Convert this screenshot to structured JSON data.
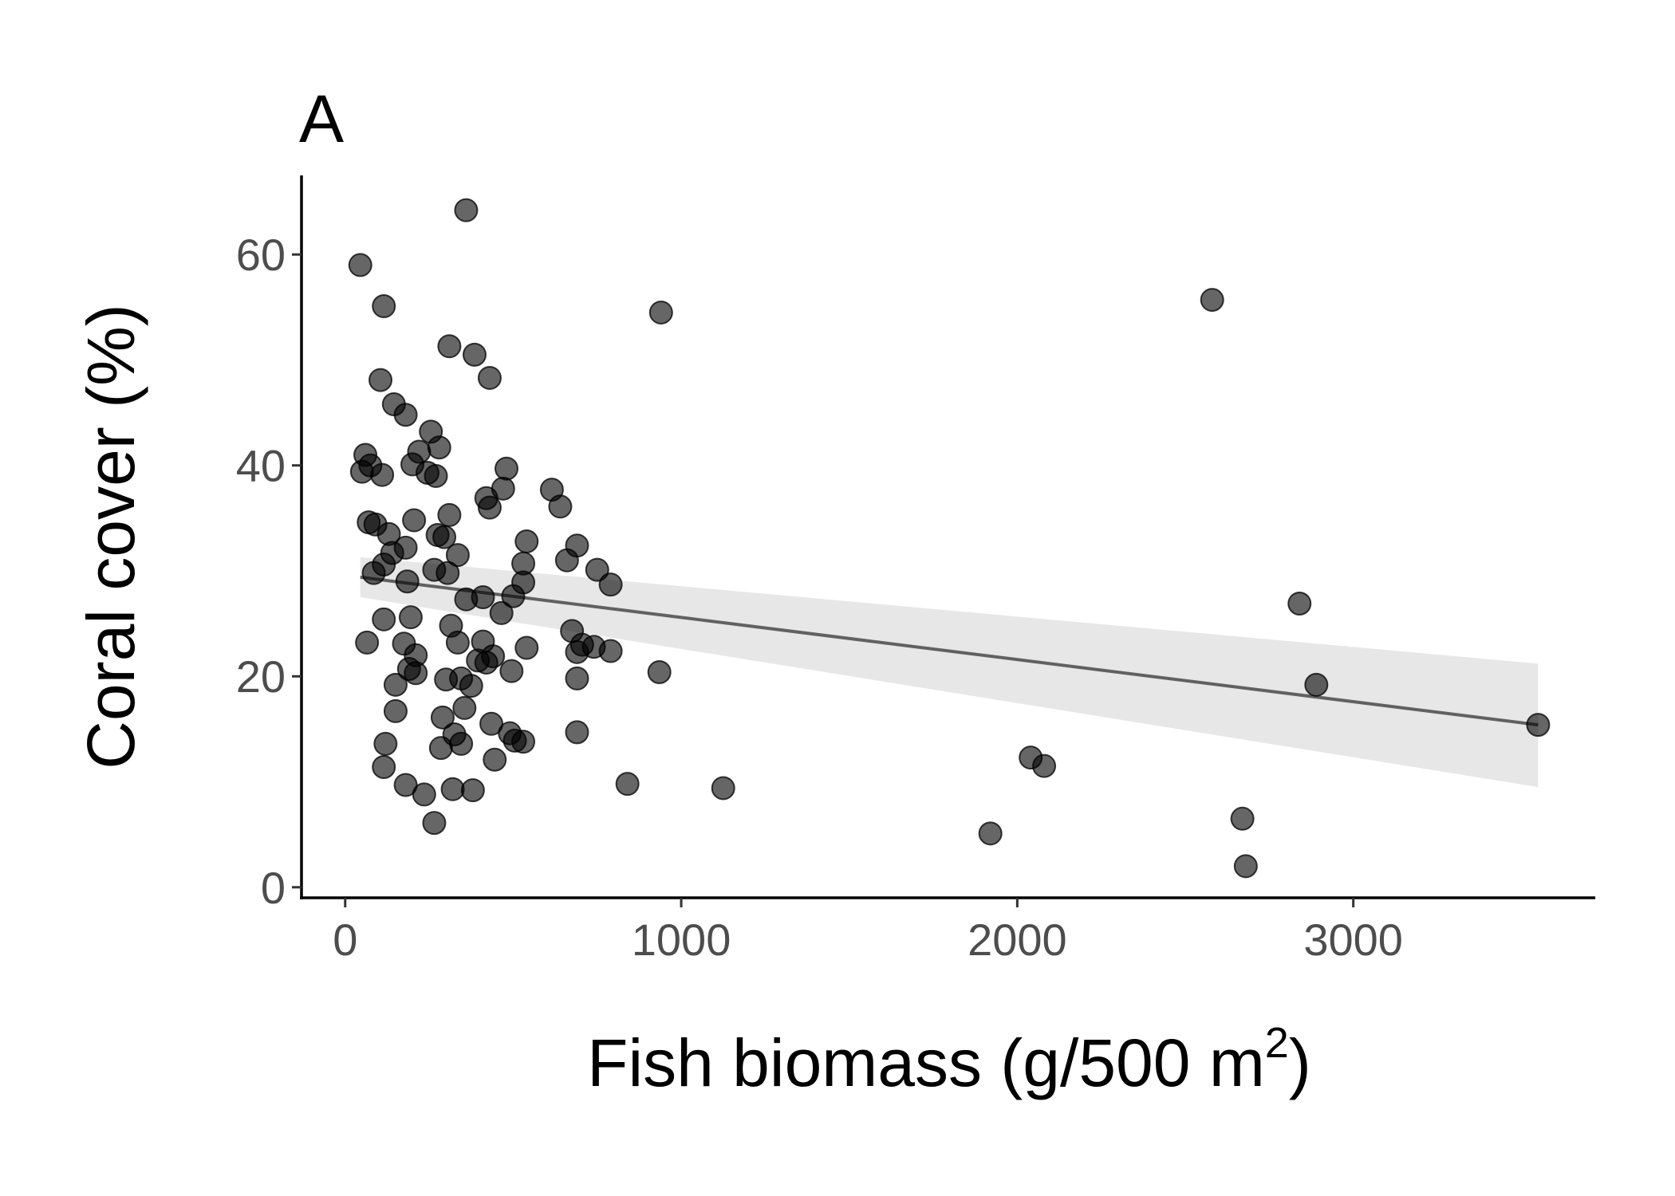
{
  "chart_data": {
    "type": "scatter",
    "panel_label": "A",
    "xlabel": "Fish biomass (g/500 m",
    "xlabel_superscript": "2",
    "xlabel_suffix": ")",
    "ylabel": "Coral cover (%)",
    "xlim": [
      -130,
      3720
    ],
    "ylim": [
      -1,
      67.5
    ],
    "xticks": [
      0,
      1000,
      2000,
      3000
    ],
    "yticks": [
      0,
      20,
      40,
      60
    ],
    "grid": false,
    "legend": "none",
    "point_color": "#000000",
    "band_color": "#d3d3d3",
    "line_color": "#616161",
    "trend": {
      "x": [
        45,
        3550
      ],
      "y": [
        29.4,
        15.4
      ],
      "band_lower": [
        27.5,
        9.5
      ],
      "band_upper": [
        31.3,
        21.2
      ]
    },
    "points": [
      {
        "x": 45,
        "y": 59.0
      },
      {
        "x": 360,
        "y": 64.2
      },
      {
        "x": 115,
        "y": 55.1
      },
      {
        "x": 940,
        "y": 54.5
      },
      {
        "x": 2580,
        "y": 55.7
      },
      {
        "x": 310,
        "y": 51.3
      },
      {
        "x": 385,
        "y": 50.5
      },
      {
        "x": 430,
        "y": 48.3
      },
      {
        "x": 105,
        "y": 48.1
      },
      {
        "x": 145,
        "y": 45.8
      },
      {
        "x": 180,
        "y": 44.8
      },
      {
        "x": 255,
        "y": 43.2
      },
      {
        "x": 280,
        "y": 41.7
      },
      {
        "x": 220,
        "y": 41.3
      },
      {
        "x": 60,
        "y": 41.0
      },
      {
        "x": 75,
        "y": 40.0
      },
      {
        "x": 200,
        "y": 40.1
      },
      {
        "x": 50,
        "y": 39.4
      },
      {
        "x": 110,
        "y": 39.1
      },
      {
        "x": 245,
        "y": 39.3
      },
      {
        "x": 270,
        "y": 39.0
      },
      {
        "x": 480,
        "y": 39.7
      },
      {
        "x": 470,
        "y": 37.8
      },
      {
        "x": 420,
        "y": 36.9
      },
      {
        "x": 430,
        "y": 36.0
      },
      {
        "x": 615,
        "y": 37.7
      },
      {
        "x": 640,
        "y": 36.1
      },
      {
        "x": 310,
        "y": 35.3
      },
      {
        "x": 70,
        "y": 34.6
      },
      {
        "x": 90,
        "y": 34.4
      },
      {
        "x": 205,
        "y": 34.8
      },
      {
        "x": 130,
        "y": 33.5
      },
      {
        "x": 275,
        "y": 33.4
      },
      {
        "x": 295,
        "y": 33.2
      },
      {
        "x": 540,
        "y": 32.8
      },
      {
        "x": 690,
        "y": 32.4
      },
      {
        "x": 180,
        "y": 32.2
      },
      {
        "x": 140,
        "y": 31.7
      },
      {
        "x": 335,
        "y": 31.5
      },
      {
        "x": 660,
        "y": 31.0
      },
      {
        "x": 530,
        "y": 30.7
      },
      {
        "x": 115,
        "y": 30.6
      },
      {
        "x": 85,
        "y": 29.8
      },
      {
        "x": 265,
        "y": 30.1
      },
      {
        "x": 305,
        "y": 29.8
      },
      {
        "x": 750,
        "y": 30.1
      },
      {
        "x": 790,
        "y": 28.7
      },
      {
        "x": 530,
        "y": 28.9
      },
      {
        "x": 185,
        "y": 29.0
      },
      {
        "x": 360,
        "y": 27.3
      },
      {
        "x": 410,
        "y": 27.5
      },
      {
        "x": 500,
        "y": 27.6
      },
      {
        "x": 465,
        "y": 26.0
      },
      {
        "x": 195,
        "y": 25.6
      },
      {
        "x": 115,
        "y": 25.4
      },
      {
        "x": 315,
        "y": 24.8
      },
      {
        "x": 675,
        "y": 24.3
      },
      {
        "x": 2840,
        "y": 26.9
      },
      {
        "x": 65,
        "y": 23.2
      },
      {
        "x": 175,
        "y": 23.1
      },
      {
        "x": 335,
        "y": 23.2
      },
      {
        "x": 410,
        "y": 23.3
      },
      {
        "x": 705,
        "y": 23.0
      },
      {
        "x": 740,
        "y": 22.8
      },
      {
        "x": 690,
        "y": 22.3
      },
      {
        "x": 540,
        "y": 22.7
      },
      {
        "x": 790,
        "y": 22.4
      },
      {
        "x": 210,
        "y": 22.0
      },
      {
        "x": 440,
        "y": 21.9
      },
      {
        "x": 395,
        "y": 21.5
      },
      {
        "x": 420,
        "y": 21.3
      },
      {
        "x": 190,
        "y": 20.7
      },
      {
        "x": 210,
        "y": 20.3
      },
      {
        "x": 495,
        "y": 20.5
      },
      {
        "x": 935,
        "y": 20.4
      },
      {
        "x": 300,
        "y": 19.7
      },
      {
        "x": 345,
        "y": 19.8
      },
      {
        "x": 375,
        "y": 19.1
      },
      {
        "x": 690,
        "y": 19.8
      },
      {
        "x": 150,
        "y": 19.2
      },
      {
        "x": 2890,
        "y": 19.2
      },
      {
        "x": 355,
        "y": 17.0
      },
      {
        "x": 150,
        "y": 16.7
      },
      {
        "x": 290,
        "y": 16.1
      },
      {
        "x": 435,
        "y": 15.5
      },
      {
        "x": 3550,
        "y": 15.4
      },
      {
        "x": 325,
        "y": 14.5
      },
      {
        "x": 490,
        "y": 14.6
      },
      {
        "x": 690,
        "y": 14.7
      },
      {
        "x": 120,
        "y": 13.6
      },
      {
        "x": 345,
        "y": 13.6
      },
      {
        "x": 505,
        "y": 13.9
      },
      {
        "x": 530,
        "y": 13.8
      },
      {
        "x": 285,
        "y": 13.2
      },
      {
        "x": 2040,
        "y": 12.3
      },
      {
        "x": 2080,
        "y": 11.5
      },
      {
        "x": 445,
        "y": 12.1
      },
      {
        "x": 115,
        "y": 11.4
      },
      {
        "x": 840,
        "y": 9.8
      },
      {
        "x": 1125,
        "y": 9.4
      },
      {
        "x": 180,
        "y": 9.7
      },
      {
        "x": 320,
        "y": 9.3
      },
      {
        "x": 380,
        "y": 9.2
      },
      {
        "x": 235,
        "y": 8.8
      },
      {
        "x": 2670,
        "y": 6.5
      },
      {
        "x": 265,
        "y": 6.1
      },
      {
        "x": 1920,
        "y": 5.1
      },
      {
        "x": 2680,
        "y": 2.0
      }
    ]
  }
}
